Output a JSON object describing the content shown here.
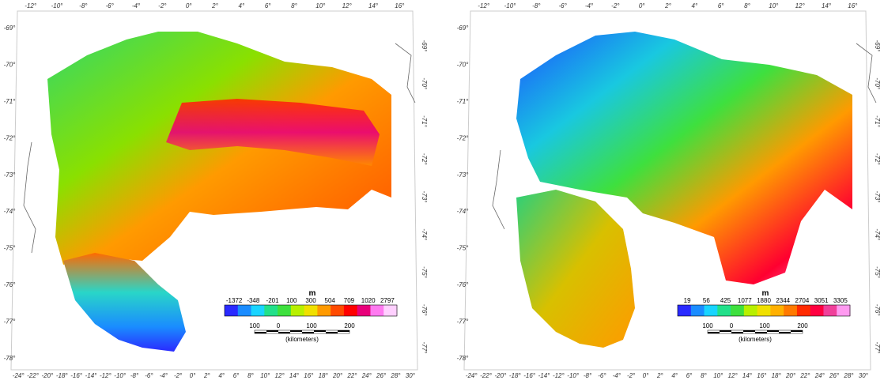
{
  "panels": [
    {
      "name": "anomaly-map",
      "top_lon_labels": [
        "-12°",
        "-10°",
        "-8°",
        "-6°",
        "-4°",
        "-2°",
        "0°",
        "2°",
        "4°",
        "6°",
        "8°",
        "10°",
        "12°",
        "14°",
        "16°"
      ],
      "bottom_lon_labels": [
        "-24°",
        "-22°",
        "-20°",
        "-18°",
        "-16°",
        "-14°",
        "-12°",
        "-10°",
        "-8°",
        "-6°",
        "-4°",
        "-2°",
        "0°",
        "2°",
        "4°",
        "6°",
        "8°",
        "10°",
        "12°",
        "14°",
        "16°",
        "18°",
        "20°",
        "22°",
        "24°",
        "26°",
        "28°",
        "30°"
      ],
      "left_lat_labels": [
        "-69°",
        "-70°",
        "-71°",
        "-72°",
        "-73°",
        "-74°",
        "-75°",
        "-76°",
        "-77°",
        "-78°"
      ],
      "right_lat_labels": [
        "-69°",
        "-70°",
        "-71°",
        "-72°",
        "-73°",
        "-74°",
        "-75°",
        "-76°",
        "-77°"
      ],
      "colorbar": {
        "unit": "m",
        "values": [
          "-1372",
          "-348",
          "-201",
          "100",
          "300",
          "504",
          "709",
          "1020",
          "2797"
        ],
        "colors": [
          "#2a2aff",
          "#1a8cff",
          "#19d4ff",
          "#22e08a",
          "#3ee03e",
          "#b8f000",
          "#f0e000",
          "#ff9a00",
          "#ff4a00",
          "#ff0000",
          "#e8007a",
          "#ff7af0",
          "#ffd0ff"
        ]
      },
      "scale": {
        "labels": [
          "100",
          "0",
          "100",
          "200"
        ],
        "unit": "(kilometers)"
      }
    },
    {
      "name": "topography-map",
      "top_lon_labels": [
        "-12°",
        "-10°",
        "-8°",
        "-6°",
        "-4°",
        "-2°",
        "0°",
        "2°",
        "4°",
        "6°",
        "8°",
        "10°",
        "12°",
        "14°",
        "16°"
      ],
      "bottom_lon_labels": [
        "-24°",
        "-22°",
        "-20°",
        "-18°",
        "-16°",
        "-14°",
        "-12°",
        "-10°",
        "-8°",
        "-6°",
        "-4°",
        "-2°",
        "0°",
        "2°",
        "4°",
        "6°",
        "8°",
        "10°",
        "12°",
        "14°",
        "16°",
        "18°",
        "20°",
        "22°",
        "24°",
        "26°",
        "28°",
        "30°"
      ],
      "left_lat_labels": [
        "-69°",
        "-70°",
        "-71°",
        "-72°",
        "-73°",
        "-74°",
        "-75°",
        "-76°",
        "-77°",
        "-78°"
      ],
      "right_lat_labels": [
        "-69°",
        "-70°",
        "-71°",
        "-72°",
        "-73°",
        "-74°",
        "-75°",
        "-76°",
        "-77°"
      ],
      "colorbar": {
        "unit": "m",
        "values": [
          "19",
          "56",
          "425",
          "1077",
          "1880",
          "2344",
          "2704",
          "3051",
          "3305"
        ],
        "colors": [
          "#2a2aff",
          "#1a8cff",
          "#19d4ff",
          "#22e08a",
          "#3ee03e",
          "#b8f000",
          "#f0e000",
          "#ffb000",
          "#ff7a00",
          "#ff2a00",
          "#ff0040",
          "#f0409a",
          "#ff9af0"
        ]
      },
      "scale": {
        "labels": [
          "100",
          "0",
          "100",
          "200"
        ],
        "unit": "(kilometers)"
      }
    }
  ]
}
